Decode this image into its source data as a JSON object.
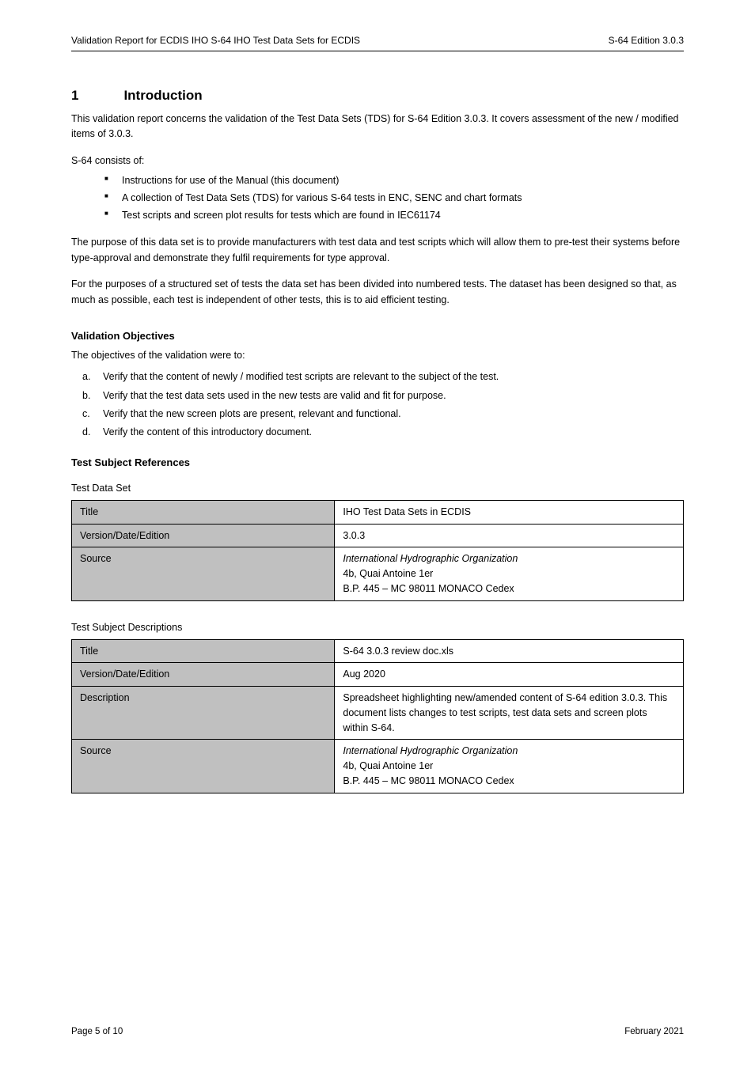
{
  "header": {
    "left": "Validation Report for ECDIS IHO S-64 IHO Test Data Sets for ECDIS",
    "right": "S-64 Edition 3.0.3"
  },
  "section": {
    "number": "1",
    "title": "Introduction"
  },
  "intro_para": "This validation report concerns the validation of the Test Data Sets (TDS) for S-64 Edition 3.0.3. It covers assessment of the new / modified items of 3.0.3.",
  "s64_consists_label": "S-64 consists of:",
  "bullets": [
    "Instructions for use of the Manual (this document)",
    "A collection of Test Data Sets (TDS) for various S-64 tests in ENC, SENC and chart formats",
    "Test scripts and screen plot results for tests which are found in IEC61174"
  ],
  "purpose_para_1": "The purpose of this data set is to provide manufacturers with test data and test scripts which will allow them to pre-test their systems before type-approval and demonstrate they fulfil requirements for type approval.",
  "purpose_para_2": "For the purposes of a structured set of tests the data set has been divided into numbered tests. The dataset has been designed so that, as much as possible, each test is independent of other tests, this is to aid efficient testing.",
  "objectives_heading": "Validation Objectives",
  "objectives_intro": "The objectives of the validation were to:",
  "objectives": [
    {
      "marker": "a.",
      "text": "Verify that the content of newly / modified test scripts are relevant to the subject of the test."
    },
    {
      "marker": "b.",
      "text": "Verify that the test data sets used in the new tests are valid and fit for purpose."
    },
    {
      "marker": "c.",
      "text": "Verify that the new screen plots are present, relevant and functional."
    },
    {
      "marker": "d.",
      "text": "Verify the content of this introductory document."
    }
  ],
  "references_heading": "Test Subject References",
  "table1_caption": "Test Data Set",
  "table1": [
    {
      "label": "Title",
      "value": "IHO Test Data Sets in ECDIS"
    },
    {
      "label": "Version/Date/Edition",
      "value": "3.0.3"
    },
    {
      "label": "Source",
      "value_html": "<span class=\"ital\">International Hydrographic Organization</span><br>4b, Quai Antoine 1er<br>B.P. 445 – MC 98011 MONACO Cedex"
    }
  ],
  "table2_caption": "Test Subject Descriptions",
  "table2": [
    {
      "label": "Title",
      "value": "S-64 3.0.3 review doc.xls"
    },
    {
      "label": "Version/Date/Edition",
      "value": "Aug 2020"
    },
    {
      "label": "Description",
      "value": "Spreadsheet highlighting new/amended content of S-64 edition 3.0.3. This document lists changes to test scripts, test data sets and screen plots within S-64."
    },
    {
      "label": "Source",
      "value_html": "<span class=\"ital\">International Hydrographic Organization</span><br>4b, Quai Antoine 1er<br>B.P. 445 – MC 98011 MONACO Cedex"
    }
  ],
  "footer": {
    "left": "Page 5 of 10",
    "right": "February 2021"
  }
}
